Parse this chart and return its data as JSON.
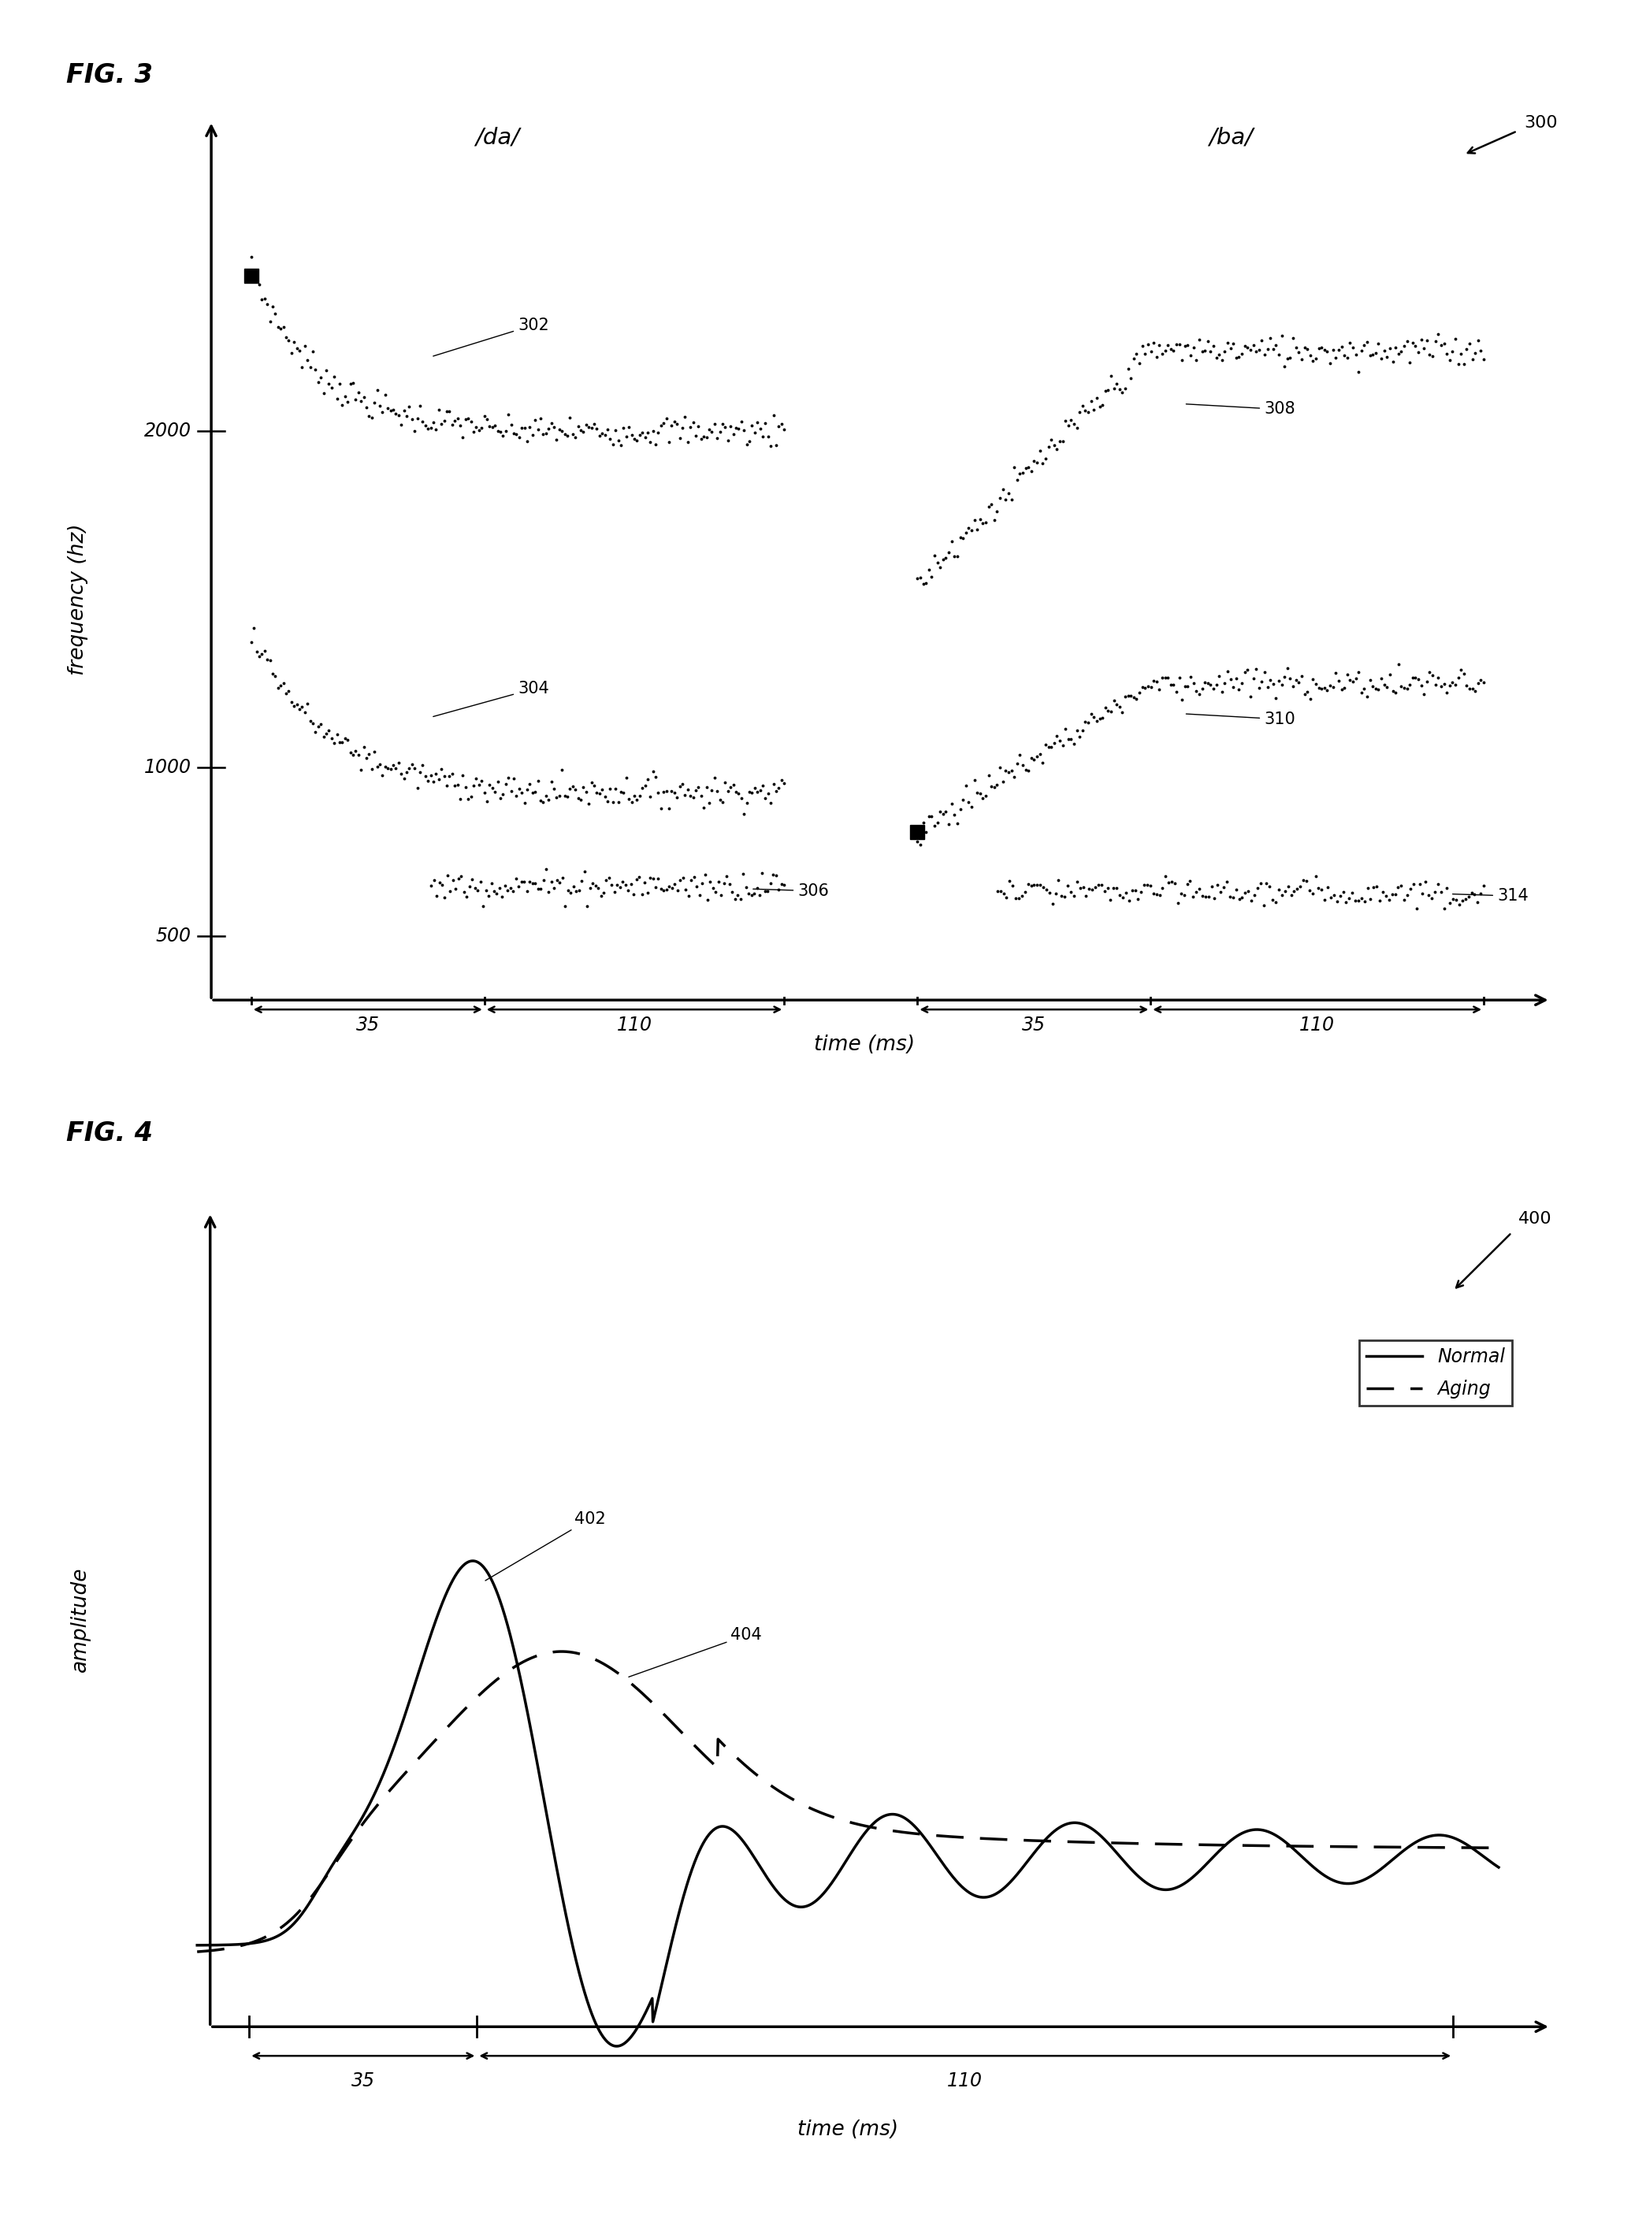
{
  "fig3_title": "FIG. 3",
  "fig4_title": "FIG. 4",
  "fig3_ref": "300",
  "fig4_ref": "400",
  "fig3_ylabel": "frequency (hz)",
  "fig3_xlabel": "time (ms)",
  "fig4_ylabel": "amplitude",
  "fig4_xlabel": "time (ms)",
  "fig3_yticks": [
    500,
    1000,
    2000
  ],
  "fig3_da_label": "/da/",
  "fig3_ba_label": "/ba/",
  "legend_normal": "Normal",
  "legend_aging": "Aging",
  "label_302": "302",
  "label_304": "304",
  "label_306": "306",
  "label_308": "308",
  "label_310": "310",
  "label_314": "314",
  "label_402": "402",
  "label_404": "404",
  "background": "#ffffff"
}
